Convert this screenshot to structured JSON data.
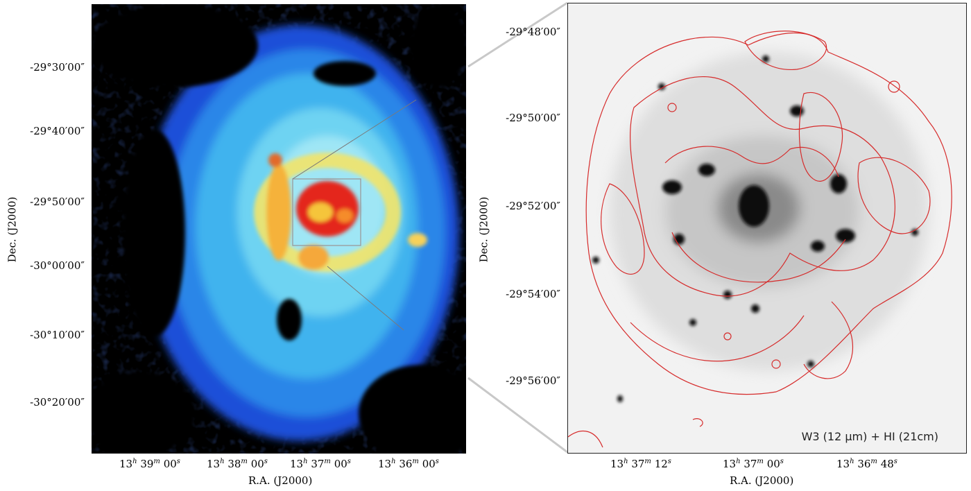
{
  "left": {
    "dec_ticks": [
      "-29°30′00″",
      "-29°40′00″",
      "-29°50′00″",
      "-30°00′00″",
      "-30°10′00″",
      "-30°20′00″"
    ],
    "ra_ticks": [
      {
        "h": "13",
        "m": "39",
        "s": "00"
      },
      {
        "h": "13",
        "m": "38",
        "s": "00"
      },
      {
        "h": "13",
        "m": "37",
        "s": "00"
      },
      {
        "h": "13",
        "m": "36",
        "s": "00"
      }
    ],
    "xlabel": "R.A. (J2000)",
    "ylabel": "Dec. (J2000)"
  },
  "right": {
    "dec_ticks": [
      "-29°48′00″",
      "-29°50′00″",
      "-29°52′00″",
      "-29°54′00″",
      "-29°56′00″"
    ],
    "ra_ticks": [
      {
        "h": "13",
        "m": "37",
        "s": "12"
      },
      {
        "h": "13",
        "m": "37",
        "s": "00"
      },
      {
        "h": "13",
        "m": "36",
        "s": "48"
      }
    ],
    "xlabel": "R.A. (J2000)",
    "ylabel": "Dec. (J2000)",
    "legend": "W3 (12 μm) + HI (21cm)"
  },
  "colors": {
    "contour": "#d62b2b",
    "zoom_lines": "#c8c8c8"
  }
}
